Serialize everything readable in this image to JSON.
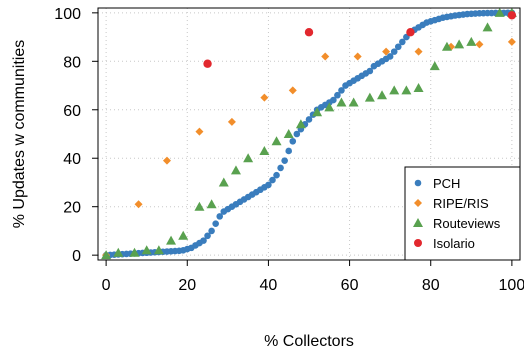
{
  "chart_data": {
    "type": "scatter",
    "title": "",
    "xlabel": "% Collectors",
    "ylabel": "% Updates w communities",
    "xlim": [
      -2,
      102
    ],
    "ylim": [
      -2,
      102
    ],
    "xticks": [
      0,
      20,
      40,
      60,
      80,
      100
    ],
    "yticks": [
      0,
      20,
      40,
      60,
      80,
      100
    ],
    "grid": true,
    "legend_position": "bottom-right",
    "series": [
      {
        "name": "PCH",
        "color": "#3a7dbd",
        "marker": "circle",
        "points": [
          [
            0,
            0
          ],
          [
            1,
            0.1
          ],
          [
            2,
            0.2
          ],
          [
            3,
            0.3
          ],
          [
            4,
            0.4
          ],
          [
            5,
            0.5
          ],
          [
            6,
            0.6
          ],
          [
            7,
            0.7
          ],
          [
            8,
            0.8
          ],
          [
            9,
            0.9
          ],
          [
            10,
            1
          ],
          [
            11,
            1.1
          ],
          [
            12,
            1.2
          ],
          [
            13,
            1.3
          ],
          [
            14,
            1.4
          ],
          [
            15,
            1.5
          ],
          [
            16,
            1.6
          ],
          [
            17,
            1.7
          ],
          [
            18,
            1.8
          ],
          [
            19,
            2
          ],
          [
            20,
            2.5
          ],
          [
            21,
            3
          ],
          [
            22,
            4
          ],
          [
            23,
            5
          ],
          [
            24,
            6
          ],
          [
            25,
            8
          ],
          [
            26,
            10
          ],
          [
            27,
            13
          ],
          [
            28,
            16
          ],
          [
            29,
            18
          ],
          [
            30,
            19
          ],
          [
            31,
            20
          ],
          [
            32,
            21
          ],
          [
            33,
            22
          ],
          [
            34,
            23
          ],
          [
            35,
            24
          ],
          [
            36,
            25
          ],
          [
            37,
            26
          ],
          [
            38,
            27
          ],
          [
            39,
            28
          ],
          [
            40,
            29
          ],
          [
            41,
            31
          ],
          [
            42,
            33
          ],
          [
            43,
            36
          ],
          [
            44,
            39
          ],
          [
            45,
            43
          ],
          [
            46,
            47
          ],
          [
            47,
            50
          ],
          [
            48,
            52
          ],
          [
            49,
            54
          ],
          [
            50,
            56
          ],
          [
            51,
            58
          ],
          [
            52,
            60
          ],
          [
            53,
            61
          ],
          [
            54,
            62
          ],
          [
            55,
            63
          ],
          [
            56,
            64
          ],
          [
            57,
            66
          ],
          [
            58,
            68
          ],
          [
            59,
            70
          ],
          [
            60,
            71
          ],
          [
            61,
            72
          ],
          [
            62,
            73
          ],
          [
            63,
            74
          ],
          [
            64,
            75
          ],
          [
            65,
            76
          ],
          [
            66,
            78
          ],
          [
            67,
            79
          ],
          [
            68,
            80
          ],
          [
            69,
            81
          ],
          [
            70,
            82
          ],
          [
            71,
            84
          ],
          [
            72,
            86
          ],
          [
            73,
            88
          ],
          [
            74,
            90
          ],
          [
            75,
            92
          ],
          [
            76,
            93
          ],
          [
            77,
            94
          ],
          [
            78,
            95
          ],
          [
            79,
            96
          ],
          [
            80,
            96.5
          ],
          [
            81,
            97
          ],
          [
            82,
            97.5
          ],
          [
            83,
            98
          ],
          [
            84,
            98.3
          ],
          [
            85,
            98.6
          ],
          [
            86,
            98.9
          ],
          [
            87,
            99.1
          ],
          [
            88,
            99.3
          ],
          [
            89,
            99.5
          ],
          [
            90,
            99.6
          ],
          [
            91,
            99.7
          ],
          [
            92,
            99.8
          ],
          [
            93,
            99.85
          ],
          [
            94,
            99.9
          ],
          [
            95,
            99.93
          ],
          [
            96,
            99.96
          ],
          [
            97,
            99.98
          ],
          [
            98,
            99.99
          ],
          [
            99,
            100
          ],
          [
            100,
            100
          ]
        ]
      },
      {
        "name": "RIPE/RIS",
        "color": "#f28e2b",
        "marker": "diamond",
        "points": [
          [
            0,
            0
          ],
          [
            8,
            21
          ],
          [
            15,
            39
          ],
          [
            23,
            51
          ],
          [
            31,
            55
          ],
          [
            39,
            65
          ],
          [
            46,
            68
          ],
          [
            54,
            82
          ],
          [
            62,
            82
          ],
          [
            69,
            84
          ],
          [
            77,
            84
          ],
          [
            85,
            86
          ],
          [
            92,
            87
          ],
          [
            100,
            88
          ]
        ]
      },
      {
        "name": "Routeviews",
        "color": "#59a14f",
        "marker": "triangle",
        "points": [
          [
            0,
            0
          ],
          [
            3,
            1
          ],
          [
            7,
            1
          ],
          [
            10,
            2
          ],
          [
            13,
            2
          ],
          [
            16,
            6
          ],
          [
            19,
            8
          ],
          [
            23,
            20
          ],
          [
            26,
            21
          ],
          [
            29,
            30
          ],
          [
            32,
            35
          ],
          [
            35,
            40
          ],
          [
            39,
            43
          ],
          [
            42,
            47
          ],
          [
            45,
            50
          ],
          [
            48,
            54
          ],
          [
            52,
            59
          ],
          [
            55,
            61
          ],
          [
            58,
            63
          ],
          [
            61,
            63
          ],
          [
            65,
            65
          ],
          [
            68,
            66
          ],
          [
            71,
            68
          ],
          [
            74,
            68
          ],
          [
            77,
            69
          ],
          [
            81,
            78
          ],
          [
            84,
            86
          ],
          [
            87,
            87
          ],
          [
            90,
            88
          ],
          [
            94,
            94
          ],
          [
            97,
            100
          ],
          [
            100,
            100
          ]
        ]
      },
      {
        "name": "Isolario",
        "color": "#e2282e",
        "marker": "circle",
        "points": [
          [
            25,
            79
          ],
          [
            50,
            92
          ],
          [
            75,
            92
          ],
          [
            100,
            99
          ]
        ]
      }
    ]
  }
}
